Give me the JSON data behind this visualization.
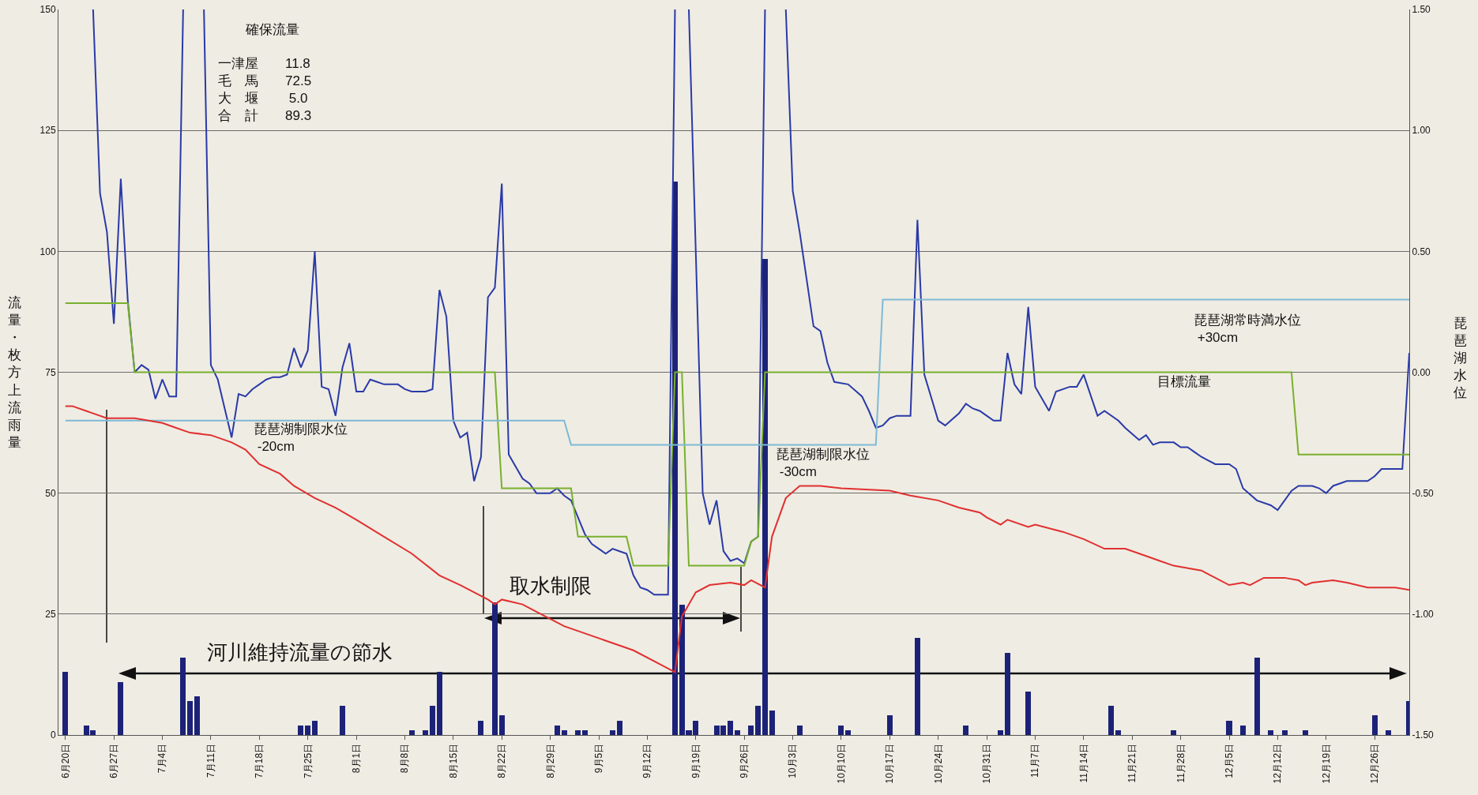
{
  "chart_data": {
    "type": "line",
    "ylabel": "流量・枚方上流雨量",
    "y2label": "琵琶湖水位",
    "xlim": [
      "--06-19",
      "--12-31"
    ],
    "xticks": [
      {
        "value": "--06-20",
        "label": "6月20日"
      },
      {
        "value": "--06-27",
        "label": "6月27日"
      },
      {
        "value": "--07-04",
        "label": "7月4日"
      },
      {
        "value": "--07-11",
        "label": "7月11日"
      },
      {
        "value": "--07-18",
        "label": "7月18日"
      },
      {
        "value": "--07-25",
        "label": "7月25日"
      },
      {
        "value": "--08-01",
        "label": "8月1日"
      },
      {
        "value": "--08-08",
        "label": "8月8日"
      },
      {
        "value": "--08-15",
        "label": "8月15日"
      },
      {
        "value": "--08-22",
        "label": "8月22日"
      },
      {
        "value": "--08-29",
        "label": "8月29日"
      },
      {
        "value": "--09-05",
        "label": "9月5日"
      },
      {
        "value": "--09-12",
        "label": "9月12日"
      },
      {
        "value": "--09-19",
        "label": "9月19日"
      },
      {
        "value": "--09-26",
        "label": "9月26日"
      },
      {
        "value": "--10-03",
        "label": "10月3日"
      },
      {
        "value": "--10-10",
        "label": "10月10日"
      },
      {
        "value": "--10-17",
        "label": "10月17日"
      },
      {
        "value": "--10-24",
        "label": "10月24日"
      },
      {
        "value": "--10-31",
        "label": "10月31日"
      },
      {
        "value": "--11-07",
        "label": "11月7日"
      },
      {
        "value": "--11-14",
        "label": "11月14日"
      },
      {
        "value": "--11-21",
        "label": "11月21日"
      },
      {
        "value": "--11-28",
        "label": "11月28日"
      },
      {
        "value": "--12-05",
        "label": "12月5日"
      },
      {
        "value": "--12-12",
        "label": "12月12日"
      },
      {
        "value": "--12-19",
        "label": "12月19日"
      },
      {
        "value": "--12-26",
        "label": "12月26日"
      }
    ],
    "ylim": [
      0,
      150
    ],
    "yticks": [
      0,
      25,
      50,
      75,
      100,
      125,
      150
    ],
    "y2lim": [
      -1.5,
      1.5
    ],
    "y2ticks": [
      {
        "value": -1.5,
        "label": "-1.50"
      },
      {
        "value": -1,
        "label": "-1.00"
      },
      {
        "value": -0.5,
        "label": "-0.50"
      },
      {
        "value": 0,
        "label": "0.00"
      },
      {
        "value": 0.5,
        "label": "0.50"
      },
      {
        "value": 1,
        "label": "1.00"
      },
      {
        "value": 1.5,
        "label": "1.50"
      }
    ],
    "grid": "y",
    "series": [
      {
        "type": "bar",
        "color": "#1c2278",
        "x": [
          "--06-20",
          "--06-23",
          "--06-24",
          "--06-28",
          "--07-07",
          "--07-08",
          "--07-09",
          "--07-24",
          "--07-25",
          "--07-26",
          "--07-30",
          "--08-09",
          "--08-11",
          "--08-12",
          "--08-13",
          "--08-19",
          "--08-21",
          "--08-22",
          "--08-30",
          "--08-31",
          "--09-02",
          "--09-03",
          "--09-07",
          "--09-08",
          "--09-16",
          "--09-17",
          "--09-18",
          "--09-19",
          "--09-22",
          "--09-23",
          "--09-24",
          "--09-25",
          "--09-27",
          "--09-28",
          "--09-29",
          "--09-30",
          "--10-04",
          "--10-10",
          "--10-11",
          "--10-17",
          "--10-21",
          "--10-28",
          "--11-02",
          "--11-03",
          "--11-06",
          "--11-18",
          "--11-19",
          "--11-27",
          "--12-05",
          "--12-07",
          "--12-09",
          "--12-11",
          "--12-13",
          "--12-16",
          "--12-26",
          "--12-28",
          "--12-31"
        ],
        "values": [
          13,
          2,
          1,
          11,
          16,
          7,
          8,
          2,
          2,
          3,
          6,
          1,
          1,
          6,
          13,
          3,
          27.5,
          4,
          2,
          1,
          1,
          1,
          1,
          3,
          114.5,
          27,
          1,
          3,
          2,
          2,
          3,
          1,
          2,
          6,
          98.5,
          5,
          2,
          2,
          1,
          4,
          20,
          2,
          1,
          17,
          9,
          6,
          1,
          1,
          3,
          2,
          16,
          1,
          1,
          1,
          4,
          1,
          7
        ]
      },
      {
        "color": "#2a3aa8",
        "x": [
          "--06-24",
          "--06-25",
          "--06-26",
          "--06-27",
          "--06-28",
          "--06-29",
          "--06-30",
          "--07-01",
          "--07-02",
          "--07-03",
          "--07-04",
          "--07-05",
          "--07-06",
          "--07-07",
          "--07-08",
          "--07-10",
          "--07-11",
          "--07-12",
          "--07-13",
          "--07-14",
          "--07-15",
          "--07-16",
          "--07-17",
          "--07-18",
          "--07-19",
          "--07-20",
          "--07-21",
          "--07-22",
          "--07-23",
          "--07-24",
          "--07-25",
          "--07-26",
          "--07-27",
          "--07-28",
          "--07-29",
          "--07-30",
          "--07-31",
          "--08-01",
          "--08-02",
          "--08-03",
          "--08-04",
          "--08-05",
          "--08-06",
          "--08-07",
          "--08-08",
          "--08-09",
          "--08-10",
          "--08-11",
          "--08-12",
          "--08-13",
          "--08-14",
          "--08-15",
          "--08-16",
          "--08-17",
          "--08-18",
          "--08-19",
          "--08-20",
          "--08-21",
          "--08-22",
          "--08-23",
          "--08-24",
          "--08-25",
          "--08-26",
          "--08-27",
          "--08-29",
          "--08-30",
          "--08-31",
          "--09-01",
          "--09-02",
          "--09-03",
          "--09-04",
          "--09-05",
          "--09-06",
          "--09-07",
          "--09-08",
          "--09-09",
          "--09-10",
          "--09-11",
          "--09-12",
          "--09-13",
          "--09-15",
          "--09-16",
          "--09-17",
          "--09-18",
          "--09-20",
          "--09-21",
          "--09-22",
          "--09-23",
          "--09-24",
          "--09-25",
          "--09-26",
          "--09-27",
          "--09-28",
          "--09-29",
          "--09-30",
          "--10-02",
          "--10-03",
          "--10-04",
          "--10-06",
          "--10-07",
          "--10-08",
          "--10-09",
          "--10-11",
          "--10-13",
          "--10-14",
          "--10-15",
          "--10-16",
          "--10-17",
          "--10-18",
          "--10-20",
          "--10-21",
          "--10-22",
          "--10-24",
          "--10-25",
          "--10-27",
          "--10-28",
          "--10-29",
          "--10-30",
          "--10-31",
          "--11-01",
          "--11-02",
          "--11-03",
          "--11-04",
          "--11-05",
          "--11-06",
          "--11-07",
          "--11-09",
          "--11-10",
          "--11-12",
          "--11-13",
          "--11-14",
          "--11-16",
          "--11-17",
          "--11-19",
          "--11-20",
          "--11-22",
          "--11-23",
          "--11-24",
          "--11-25",
          "--11-27",
          "--11-28",
          "--11-29",
          "--11-30",
          "--12-01",
          "--12-03",
          "--12-05",
          "--12-06",
          "--12-07",
          "--12-09",
          "--12-11",
          "--12-12",
          "--12-14",
          "--12-15",
          "--12-17",
          "--12-18",
          "--12-19",
          "--12-20",
          "--12-22",
          "--12-25",
          "--12-26",
          "--12-27",
          "--12-30",
          "--12-31"
        ],
        "values": [
          150,
          112,
          104,
          85,
          115,
          90,
          75,
          76.5,
          75.5,
          69.5,
          73.5,
          70,
          70,
          150,
          null,
          150,
          76.5,
          73.5,
          67.5,
          61.5,
          70.5,
          70,
          71.5,
          72.5,
          73.5,
          74,
          74,
          74.5,
          80,
          76,
          79.5,
          100,
          72,
          71.5,
          66,
          76,
          81,
          71,
          71,
          73.5,
          73,
          72.5,
          72.5,
          72.5,
          71.5,
          71,
          71,
          71,
          71.5,
          92,
          86.5,
          65,
          61.5,
          62.5,
          52.5,
          57.5,
          90.5,
          92.5,
          114,
          58,
          55.5,
          53,
          52,
          50,
          50,
          51,
          49.5,
          48.5,
          45,
          41.5,
          39.5,
          38.5,
          37.5,
          38.5,
          38,
          37.5,
          33,
          30.5,
          30,
          29,
          29,
          150,
          null,
          150,
          50,
          43.5,
          48.5,
          38,
          36,
          36.5,
          35.5,
          40,
          41,
          150,
          null,
          150,
          112.5,
          104,
          84.5,
          83.5,
          77,
          73,
          72.5,
          70,
          67,
          63.5,
          64,
          65.5,
          66,
          66,
          106.5,
          74.5,
          65,
          64,
          66.5,
          68.5,
          67.5,
          67,
          66,
          65,
          65,
          79,
          72.5,
          70.5,
          88.5,
          72,
          67,
          71,
          72,
          72,
          74.5,
          66,
          67,
          65,
          63.5,
          61,
          62,
          60,
          60.5,
          60.5,
          59.5,
          59.5,
          58.5,
          57.5,
          56,
          56,
          55,
          51,
          48.5,
          47.5,
          46.5,
          50.5,
          51.5,
          51.5,
          51,
          50,
          51.5,
          52.5,
          52.5,
          53.5,
          55,
          55,
          79
        ]
      },
      {
        "color": "#78b02e",
        "x": [
          "--06-20",
          "--06-29",
          "--06-30",
          "--08-21",
          "--08-22",
          "--09-01",
          "--09-02",
          "--09-09",
          "--09-10",
          "--09-15",
          "--09-16",
          "--09-17",
          "--09-18",
          "--09-26",
          "--09-27",
          "--09-28",
          "--09-29",
          "--12-14",
          "--12-15",
          "--12-31"
        ],
        "values": [
          89.3,
          89.3,
          75,
          75,
          51,
          51,
          41,
          41,
          35,
          35,
          75,
          75,
          35,
          35,
          40,
          41,
          75,
          75,
          58,
          58
        ]
      },
      {
        "axis": "y2",
        "color": "#7fb9d6",
        "x": [
          "--06-20",
          "--08-31",
          "--09-01",
          "--10-15",
          "--10-16",
          "--12-31"
        ],
        "values": [
          -0.2,
          -0.2,
          -0.3,
          -0.3,
          0.3,
          0.3
        ]
      },
      {
        "axis": "y2",
        "color": "#e03030",
        "x": [
          "--06-20",
          "--06-21",
          "--06-23",
          "--06-24",
          "--06-26",
          "--06-30",
          "--07-04",
          "--07-06",
          "--07-08",
          "--07-11",
          "--07-14",
          "--07-16",
          "--07-18",
          "--07-21",
          "--07-23",
          "--07-26",
          "--07-29",
          "--08-01",
          "--08-05",
          "--08-09",
          "--08-13",
          "--08-16",
          "--08-20",
          "--08-21",
          "--08-22",
          "--08-25",
          "--08-27",
          "--08-31",
          "--09-06",
          "--09-10",
          "--09-14",
          "--09-16",
          "--09-17",
          "--09-19",
          "--09-21",
          "--09-24",
          "--09-26",
          "--09-27",
          "--09-29",
          "--09-30",
          "--10-02",
          "--10-04",
          "--10-07",
          "--10-10",
          "--10-17",
          "--10-20",
          "--10-24",
          "--10-27",
          "--10-30",
          "--10-31",
          "--11-02",
          "--11-03",
          "--11-06",
          "--11-07",
          "--11-11",
          "--11-14",
          "--11-17",
          "--11-20",
          "--11-23",
          "--11-25",
          "--11-27",
          "--12-01",
          "--12-05",
          "--12-07",
          "--12-08",
          "--12-10",
          "--12-13",
          "--12-15",
          "--12-16",
          "--12-17",
          "--12-20",
          "--12-22",
          "--12-25",
          "--12-29",
          "--12-31"
        ],
        "values": [
          -0.14,
          -0.14,
          -0.16,
          -0.17,
          -0.19,
          -0.19,
          -0.21,
          -0.23,
          -0.25,
          -0.26,
          -0.29,
          -0.32,
          -0.38,
          -0.42,
          -0.47,
          -0.52,
          -0.56,
          -0.61,
          -0.68,
          -0.75,
          -0.84,
          -0.88,
          -0.94,
          -0.96,
          -0.94,
          -0.96,
          -0.99,
          -1.05,
          -1.11,
          -1.15,
          -1.21,
          -1.24,
          -1.01,
          -0.91,
          -0.88,
          -0.87,
          -0.88,
          -0.86,
          -0.89,
          -0.68,
          -0.52,
          -0.47,
          -0.47,
          -0.48,
          -0.49,
          -0.51,
          -0.53,
          -0.56,
          -0.58,
          -0.6,
          -0.63,
          -0.61,
          -0.64,
          -0.63,
          -0.66,
          -0.69,
          -0.73,
          -0.73,
          -0.76,
          -0.78,
          -0.8,
          -0.82,
          -0.88,
          -0.87,
          -0.88,
          -0.85,
          -0.85,
          -0.86,
          -0.88,
          -0.87,
          -0.86,
          -0.87,
          -0.89,
          -0.89,
          -0.9
        ]
      }
    ],
    "annotations": [
      "確保流量",
      "一津屋　　11.8\n毛　馬　　72.5\n大　堰　　 5.0\n合　計　　89.3",
      "琵琶湖制限水位\n -20cm",
      "琵琶湖制限水位\n -30cm",
      "琵琶湖常時満水位\n +30cm",
      "目標流量",
      "河川維持流量の節水",
      "取水制限"
    ]
  }
}
